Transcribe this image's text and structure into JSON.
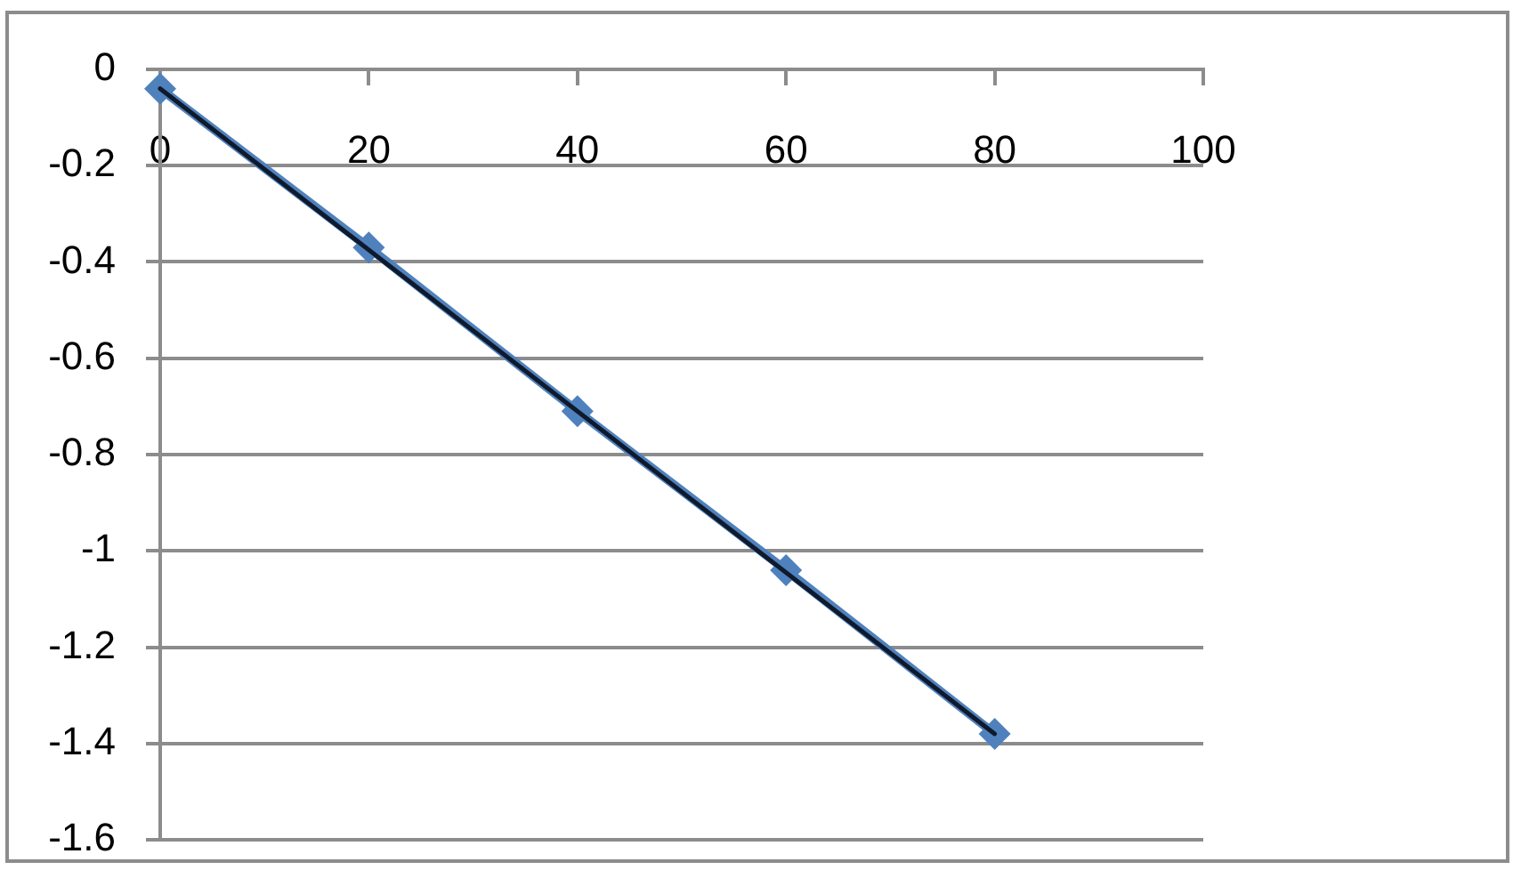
{
  "chart_data": {
    "type": "line",
    "x": [
      0,
      20,
      40,
      60,
      80
    ],
    "series": [
      {
        "color": "#4f81bd",
        "values": [
          -0.04,
          -0.37,
          -0.71,
          -1.04,
          -1.38
        ]
      },
      {
        "type": "line",
        "color": "#0f1a2c",
        "x": [
          0,
          80
        ],
        "values": [
          -0.04,
          -1.38
        ],
        "marker": "none"
      }
    ],
    "xlim": [
      0,
      100
    ],
    "xticks": [
      0,
      20,
      40,
      60,
      80,
      100
    ],
    "ylim": [
      -1.6,
      0
    ],
    "yticks": [
      -1.6,
      -1.4,
      -1.2,
      -1,
      -0.8,
      -0.6,
      -0.4,
      -0.2,
      0
    ],
    "grid": "y",
    "marker": "diamond"
  }
}
